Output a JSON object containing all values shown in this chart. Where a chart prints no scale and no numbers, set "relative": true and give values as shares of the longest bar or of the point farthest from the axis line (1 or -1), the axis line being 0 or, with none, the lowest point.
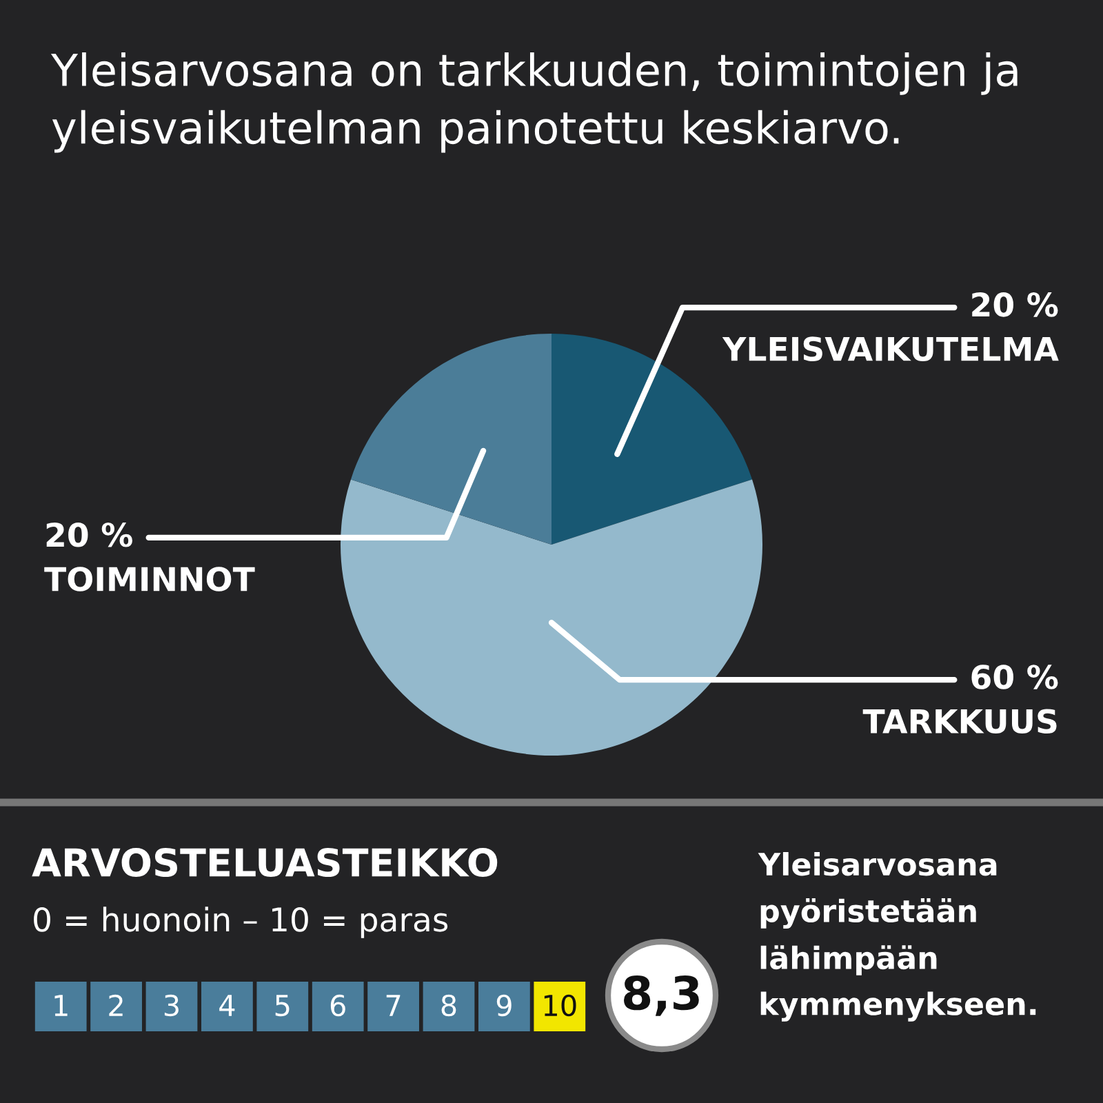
{
  "chart_data": [
    {
      "type": "pie",
      "title": "Yleisarvosana on tarkkuuden, toimintojen ja yleisvaikutelman painotettu keskiarvo.",
      "categories": [
        "YLEISVAIKUTELMA",
        "TARKKUUS",
        "TOIMINNOT"
      ],
      "values": [
        20,
        60,
        20
      ],
      "value_labels": [
        "20 %",
        "60 %",
        "20 %"
      ],
      "colors": [
        "#185873",
        "#94b9cc",
        "#4b7d98"
      ]
    },
    {
      "type": "bar",
      "relative": true,
      "title": "ARVOSTELUASTEIKKO",
      "subtitle": "0 = huonoin – 10 = paras",
      "categories": [
        "1",
        "2",
        "3",
        "4",
        "5",
        "6",
        "7",
        "8",
        "9",
        "10"
      ],
      "values": [
        1,
        1,
        1,
        1,
        1,
        1,
        1,
        1,
        1,
        1
      ],
      "colors": [
        "#4a7d9b",
        "#4a7d9b",
        "#4a7d9b",
        "#4a7d9b",
        "#4a7d9b",
        "#4a7d9b",
        "#4a7d9b",
        "#4a7d9b",
        "#4a7d9b",
        "#f2e600"
      ],
      "annotations": [
        "8,3",
        "Yleisarvosana pyöristetään lähimpään kymmenykseen."
      ]
    }
  ]
}
